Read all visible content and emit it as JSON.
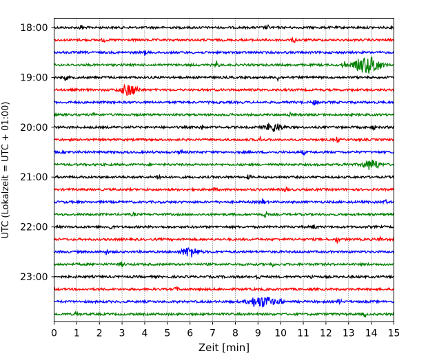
{
  "chart_data": {
    "type": "line",
    "title": "",
    "xlabel": "Zeit  [min]",
    "ylabel": "UTC (Lokalzeit = UTC + 01:00)",
    "xlim": [
      0,
      15
    ],
    "x_ticks": [
      "0",
      "1",
      "2",
      "3",
      "4",
      "5",
      "6",
      "7",
      "8",
      "9",
      "10",
      "11",
      "12",
      "13",
      "14",
      "15"
    ],
    "y_ticks": [
      "18:00",
      "19:00",
      "20:00",
      "21:00",
      "22:00",
      "23:00"
    ],
    "grid": "vertical dotted",
    "trace_colors": [
      "#000000",
      "#ff0000",
      "#0000ff",
      "#008000"
    ],
    "series": [
      {
        "start": "18:00",
        "events": [
          {
            "t": 1.2,
            "a": 3
          },
          {
            "t": 9.4,
            "a": 3
          }
        ]
      },
      {
        "start": "18:15",
        "events": [
          {
            "t": 2.2,
            "a": 2
          },
          {
            "t": 10.6,
            "a": 3
          }
        ]
      },
      {
        "start": "18:30",
        "events": [
          {
            "t": 4.0,
            "a": 3
          }
        ]
      },
      {
        "start": "18:45",
        "events": [
          {
            "t": 7.2,
            "a": 5
          },
          {
            "t": 12.8,
            "a": 5
          },
          {
            "t": 13.6,
            "a": 9
          },
          {
            "t": 14.1,
            "a": 10
          }
        ]
      },
      {
        "start": "19:00",
        "events": [
          {
            "t": 0.5,
            "a": 3
          },
          {
            "t": 9.9,
            "a": 4
          }
        ]
      },
      {
        "start": "19:15",
        "events": [
          {
            "t": 3.3,
            "a": 8
          }
        ]
      },
      {
        "start": "19:30",
        "events": [
          {
            "t": 11.5,
            "a": 3
          }
        ]
      },
      {
        "start": "19:45",
        "events": [
          {
            "t": 1.8,
            "a": 3
          },
          {
            "t": 10.4,
            "a": 2
          }
        ]
      },
      {
        "start": "20:00",
        "events": [
          {
            "t": 6.5,
            "a": 3
          },
          {
            "t": 9.7,
            "a": 6
          },
          {
            "t": 14.1,
            "a": 3
          }
        ]
      },
      {
        "start": "20:15",
        "events": [
          {
            "t": 9.1,
            "a": 3
          },
          {
            "t": 12.5,
            "a": 3
          }
        ]
      },
      {
        "start": "20:30",
        "events": [
          {
            "t": 5.6,
            "a": 3
          },
          {
            "t": 11.0,
            "a": 3
          }
        ]
      },
      {
        "start": "20:45",
        "events": [
          {
            "t": 12.9,
            "a": 5
          },
          {
            "t": 14.0,
            "a": 7
          }
        ]
      },
      {
        "start": "21:00",
        "events": [
          {
            "t": 4.6,
            "a": 4
          },
          {
            "t": 8.6,
            "a": 3
          }
        ]
      },
      {
        "start": "21:15",
        "events": [
          {
            "t": 7.1,
            "a": 2
          },
          {
            "t": 10.2,
            "a": 3
          }
        ]
      },
      {
        "start": "21:30",
        "events": [
          {
            "t": 9.2,
            "a": 4
          },
          {
            "t": 14.6,
            "a": 3
          }
        ]
      },
      {
        "start": "21:45",
        "events": [
          {
            "t": 3.5,
            "a": 2
          },
          {
            "t": 9.3,
            "a": 4
          }
        ]
      },
      {
        "start": "22:00",
        "events": [
          {
            "t": 2.5,
            "a": 3
          },
          {
            "t": 11.5,
            "a": 3
          }
        ]
      },
      {
        "start": "22:15",
        "events": [
          {
            "t": 12.5,
            "a": 4
          },
          {
            "t": 14.4,
            "a": 3
          }
        ]
      },
      {
        "start": "22:30",
        "events": [
          {
            "t": 6.0,
            "a": 7
          },
          {
            "t": 2.3,
            "a": 3
          }
        ]
      },
      {
        "start": "22:45",
        "events": [
          {
            "t": 9.6,
            "a": 3
          },
          {
            "t": 3.0,
            "a": 3
          }
        ]
      },
      {
        "start": "23:00",
        "events": [
          {
            "t": 9.0,
            "a": 4
          },
          {
            "t": 11.4,
            "a": 3
          }
        ]
      },
      {
        "start": "23:15",
        "events": [
          {
            "t": 5.4,
            "a": 3
          }
        ]
      },
      {
        "start": "23:30",
        "events": [
          {
            "t": 8.9,
            "a": 6
          },
          {
            "t": 9.4,
            "a": 6
          },
          {
            "t": 10.0,
            "a": 5
          },
          {
            "t": 12.6,
            "a": 3
          }
        ]
      },
      {
        "start": "23:45",
        "events": [
          {
            "t": 1.0,
            "a": 3
          },
          {
            "t": 13.7,
            "a": 3
          }
        ]
      }
    ]
  }
}
